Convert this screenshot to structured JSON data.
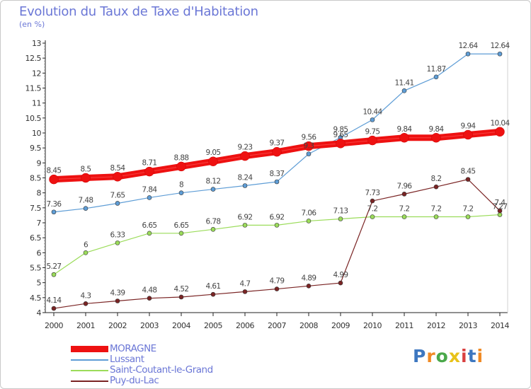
{
  "header": {
    "title": "Evolution du Taux de Taxe d'Habitation",
    "subtitle": "(en %)"
  },
  "logo": {
    "text": "Proxiti",
    "colors": [
      "#3d77c0",
      "#f08a24",
      "#4aa84a",
      "#e8c21a",
      "#d94040",
      "#3d77c0",
      "#f08a24"
    ]
  },
  "chart_data": {
    "type": "line",
    "title": "Evolution du Taux de Taxe d'Habitation",
    "ylabel": "(en %)",
    "xlabel": "",
    "x": [
      2000,
      2001,
      2002,
      2003,
      2004,
      2005,
      2006,
      2007,
      2008,
      2009,
      2010,
      2011,
      2012,
      2013,
      2014
    ],
    "ylim": [
      4,
      13
    ],
    "yticks": [
      "4",
      "4.5",
      "5",
      "5.5",
      "6",
      "6.5",
      "7",
      "7.5",
      "8",
      "8.5",
      "9",
      "9.5",
      "10",
      "10.5",
      "11",
      "11.5",
      "12",
      "12.5",
      "13"
    ],
    "grid": false,
    "legend_position": "bottom-left",
    "series": [
      {
        "name": "MORAGNE",
        "color": "#ee1111",
        "emphasis": true,
        "values": [
          8.45,
          8.5,
          8.54,
          8.71,
          8.88,
          9.05,
          9.23,
          9.37,
          9.56,
          9.65,
          9.75,
          9.84,
          9.84,
          9.94,
          10.04
        ],
        "labels": [
          "8.45",
          "8.5",
          "8.54",
          "8.71",
          "8.88",
          "9.05",
          "9.23",
          "9.37",
          "9.56",
          "9.65",
          "9.75",
          "9.84",
          "9.84",
          "9.94",
          "10.04"
        ]
      },
      {
        "name": "Lussant",
        "color": "#5e9dd6",
        "values": [
          7.36,
          7.48,
          7.65,
          7.84,
          8,
          8.12,
          8.24,
          8.37,
          9.3,
          9.85,
          10.44,
          11.41,
          11.87,
          12.64,
          12.64
        ],
        "labels": [
          "7.36",
          "7.48",
          "7.65",
          "7.84",
          "8",
          "8.12",
          "8.24",
          "8.37",
          "9.3",
          "9.85",
          "10.44",
          "11.41",
          "11.87",
          "12.64",
          "12.64"
        ]
      },
      {
        "name": "Saint-Coutant-le-Grand",
        "color": "#9bdc5a",
        "values": [
          5.27,
          6,
          6.33,
          6.65,
          6.65,
          6.78,
          6.92,
          6.92,
          7.06,
          7.13,
          7.2,
          7.2,
          7.2,
          7.2,
          7.27
        ],
        "labels": [
          "5.27",
          "6",
          "6.33",
          "6.65",
          "6.65",
          "6.78",
          "6.92",
          "6.92",
          "7.06",
          "7.13",
          "7.2",
          "7.2",
          "7.2",
          "7.2",
          "7.27"
        ]
      },
      {
        "name": "Puy-du-Lac",
        "color": "#7a2424",
        "values": [
          4.14,
          4.3,
          4.39,
          4.48,
          4.52,
          4.61,
          4.7,
          4.79,
          4.89,
          4.99,
          7.73,
          7.96,
          8.2,
          8.45,
          7.4
        ],
        "labels": [
          "4.14",
          "4.3",
          "4.39",
          "4.48",
          "4.52",
          "4.61",
          "4.7",
          "4.79",
          "4.89",
          "4.99",
          "7.73",
          "7.96",
          "8.2",
          "8.45",
          "7.4"
        ]
      }
    ]
  }
}
